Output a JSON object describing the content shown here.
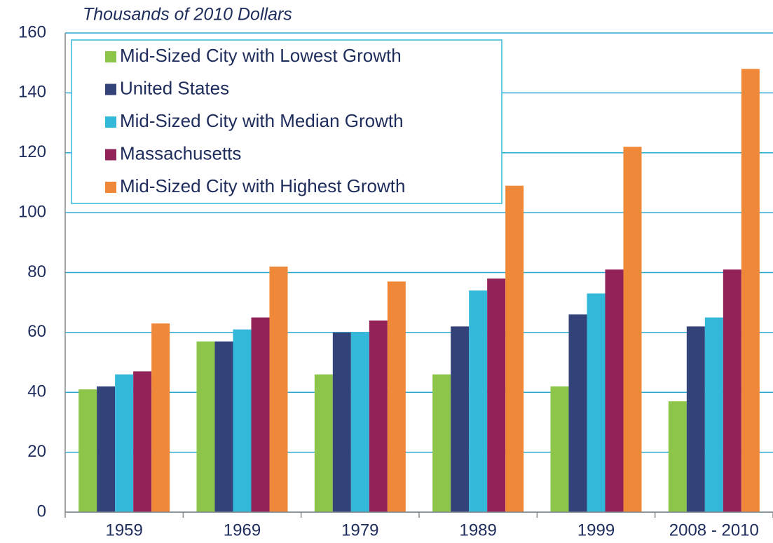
{
  "chart_data": {
    "type": "bar",
    "title": "Thousands of 2010 Dollars",
    "categories": [
      "1959",
      "1969",
      "1979",
      "1989",
      "1999",
      "2008 - 2010"
    ],
    "series": [
      {
        "name": "Mid-Sized City with Lowest Growth",
        "color": "#8dc44a",
        "values": [
          41,
          57,
          46,
          46,
          42,
          37
        ]
      },
      {
        "name": "United States",
        "color": "#34427a",
        "values": [
          42,
          57,
          60,
          62,
          66,
          62
        ]
      },
      {
        "name": "Mid-Sized City with Median Growth",
        "color": "#33b8da",
        "values": [
          46,
          61,
          60,
          74,
          73,
          65
        ]
      },
      {
        "name": "Massachusetts",
        "color": "#922258",
        "values": [
          47,
          65,
          64,
          78,
          81,
          81
        ]
      },
      {
        "name": "Mid-Sized City with Highest Growth",
        "color": "#f0883a",
        "values": [
          63,
          82,
          77,
          109,
          122,
          148
        ]
      }
    ],
    "ylim": [
      0,
      160
    ],
    "yticks": [
      0,
      20,
      40,
      60,
      80,
      100,
      120,
      140,
      160
    ],
    "grid": true,
    "legend": "upper left"
  }
}
